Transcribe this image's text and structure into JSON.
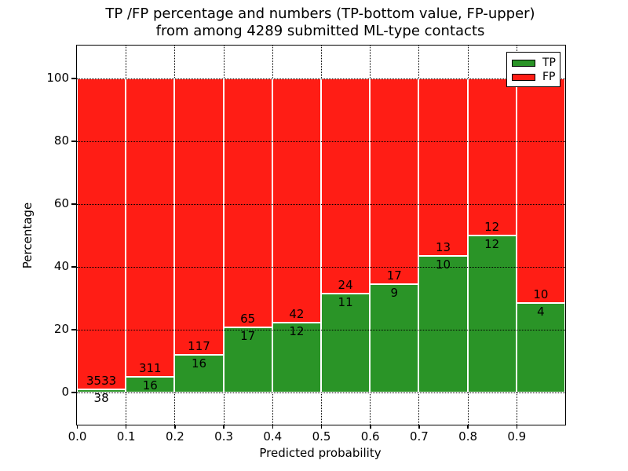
{
  "title": {
    "line1": "TP /FP percentage and numbers (TP-bottom value, FP-upper)",
    "line2": "from among 4289 submitted ML-type contacts"
  },
  "axes": {
    "xlabel": "Predicted probability",
    "ylabel": "Percentage",
    "x_tick_labels": [
      "0.0",
      "0.1",
      "0.2",
      "0.3",
      "0.4",
      "0.5",
      "0.6",
      "0.7",
      "0.8",
      "0.9"
    ],
    "y_tick_labels": [
      "0",
      "20",
      "40",
      "60",
      "80",
      "100"
    ]
  },
  "legend": {
    "items": [
      {
        "label": "TP",
        "color": "#2a9427"
      },
      {
        "label": "FP",
        "color": "#ff1d15"
      }
    ]
  },
  "colors": {
    "tp": "#2a9427",
    "fp": "#ff1d15",
    "grid": "#000000",
    "background": "#ffffff",
    "bar_edge": "#ffffff"
  },
  "chart_data": {
    "type": "bar",
    "stacked": true,
    "percent_normalized": true,
    "title": "TP /FP percentage and numbers (TP-bottom value, FP-upper) from among 4289 submitted ML-type contacts",
    "xlabel": "Predicted probability",
    "ylabel": "Percentage",
    "xlim": [
      0.0,
      1.0
    ],
    "ylim": [
      -10,
      110
    ],
    "bin_width": 0.1,
    "x_bins": [
      0.0,
      0.1,
      0.2,
      0.3,
      0.4,
      0.5,
      0.6,
      0.7,
      0.8,
      0.9
    ],
    "series": [
      {
        "name": "TP",
        "color": "#2a9427",
        "counts": [
          38,
          16,
          16,
          17,
          12,
          11,
          9,
          10,
          12,
          4
        ]
      },
      {
        "name": "FP",
        "color": "#ff1d15",
        "counts": [
          3533,
          311,
          117,
          65,
          42,
          24,
          17,
          13,
          12,
          10
        ]
      }
    ],
    "tp_percent": [
      1.06,
      4.89,
      12.03,
      20.73,
      22.22,
      31.43,
      34.62,
      43.48,
      50.0,
      28.57
    ],
    "total_contacts": 4289,
    "y_gridlines": [
      0,
      20,
      40,
      60,
      80,
      100
    ],
    "grid": true,
    "grid_style": "dotted",
    "legend_position": "upper right"
  }
}
